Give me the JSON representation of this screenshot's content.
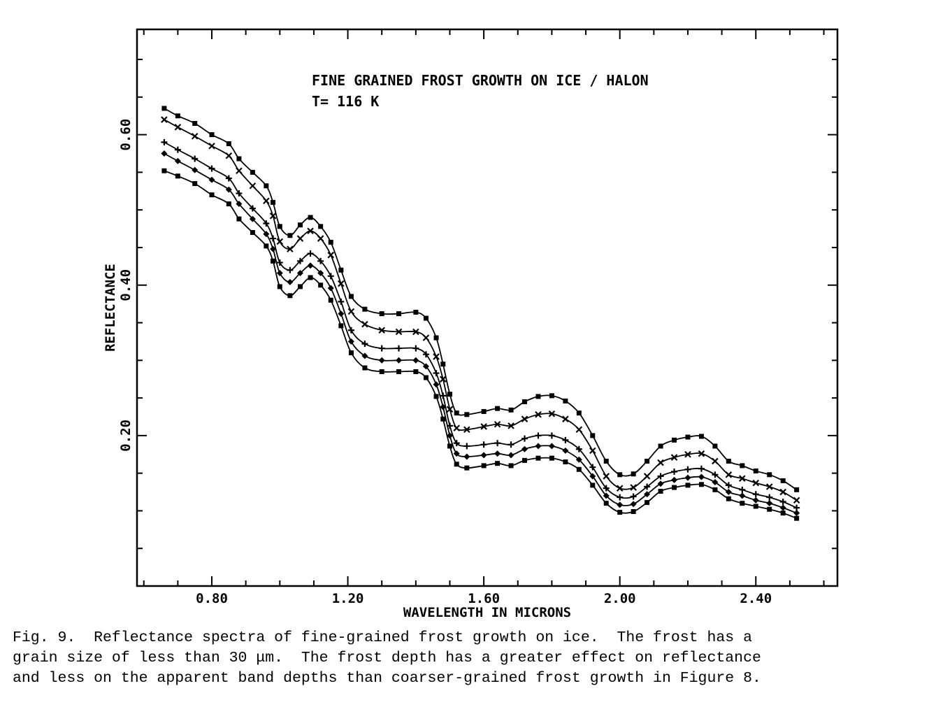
{
  "chart_data": {
    "type": "line",
    "title": "FINE GRAINED FROST GROWTH ON ICE / HALON",
    "subtitle": "T= 116 K",
    "xlabel": "WAVELENGTH IN MICRONS",
    "ylabel": "REFLECTANCE",
    "xlim": [
      0.58,
      2.64
    ],
    "ylim": [
      0.0,
      0.74
    ],
    "x_ticks": [
      "0.80",
      "1.20",
      "1.60",
      "2.00",
      "2.40"
    ],
    "y_ticks": [
      "0.20",
      "0.40",
      "0.60"
    ],
    "grid": false,
    "x": [
      0.66,
      0.7,
      0.75,
      0.8,
      0.85,
      0.88,
      0.92,
      0.96,
      0.98,
      1.0,
      1.03,
      1.06,
      1.09,
      1.12,
      1.15,
      1.18,
      1.21,
      1.25,
      1.3,
      1.35,
      1.4,
      1.43,
      1.46,
      1.48,
      1.5,
      1.52,
      1.55,
      1.6,
      1.64,
      1.68,
      1.72,
      1.76,
      1.8,
      1.84,
      1.88,
      1.92,
      1.96,
      2.0,
      2.04,
      2.08,
      2.12,
      2.16,
      2.2,
      2.24,
      2.28,
      2.32,
      2.36,
      2.4,
      2.44,
      2.48,
      2.52
    ],
    "series": [
      {
        "marker": "square",
        "values": [
          0.635,
          0.625,
          0.615,
          0.6,
          0.588,
          0.568,
          0.55,
          0.532,
          0.51,
          0.478,
          0.466,
          0.48,
          0.49,
          0.478,
          0.457,
          0.42,
          0.385,
          0.368,
          0.362,
          0.362,
          0.364,
          0.356,
          0.33,
          0.295,
          0.255,
          0.23,
          0.228,
          0.232,
          0.236,
          0.234,
          0.245,
          0.252,
          0.253,
          0.246,
          0.23,
          0.2,
          0.166,
          0.148,
          0.149,
          0.166,
          0.186,
          0.194,
          0.198,
          0.199,
          0.186,
          0.166,
          0.16,
          0.153,
          0.148,
          0.14,
          0.128
        ]
      },
      {
        "marker": "cross",
        "values": [
          0.62,
          0.61,
          0.598,
          0.585,
          0.572,
          0.552,
          0.532,
          0.512,
          0.492,
          0.458,
          0.448,
          0.462,
          0.472,
          0.462,
          0.44,
          0.402,
          0.365,
          0.348,
          0.34,
          0.338,
          0.338,
          0.33,
          0.305,
          0.275,
          0.235,
          0.21,
          0.208,
          0.212,
          0.215,
          0.213,
          0.222,
          0.228,
          0.229,
          0.222,
          0.208,
          0.18,
          0.146,
          0.13,
          0.131,
          0.146,
          0.164,
          0.171,
          0.175,
          0.176,
          0.166,
          0.148,
          0.143,
          0.137,
          0.132,
          0.125,
          0.114
        ]
      },
      {
        "marker": "plus",
        "values": [
          0.59,
          0.58,
          0.568,
          0.555,
          0.542,
          0.522,
          0.502,
          0.482,
          0.462,
          0.43,
          0.42,
          0.432,
          0.442,
          0.432,
          0.412,
          0.378,
          0.34,
          0.322,
          0.316,
          0.316,
          0.316,
          0.308,
          0.283,
          0.253,
          0.213,
          0.19,
          0.186,
          0.188,
          0.19,
          0.188,
          0.196,
          0.2,
          0.2,
          0.194,
          0.182,
          0.158,
          0.13,
          0.118,
          0.119,
          0.132,
          0.146,
          0.152,
          0.155,
          0.156,
          0.148,
          0.134,
          0.128,
          0.122,
          0.118,
          0.112,
          0.104
        ]
      },
      {
        "marker": "diamond",
        "values": [
          0.575,
          0.565,
          0.553,
          0.54,
          0.527,
          0.508,
          0.488,
          0.468,
          0.448,
          0.416,
          0.404,
          0.416,
          0.426,
          0.416,
          0.396,
          0.362,
          0.325,
          0.306,
          0.3,
          0.3,
          0.3,
          0.292,
          0.268,
          0.238,
          0.2,
          0.176,
          0.172,
          0.174,
          0.176,
          0.174,
          0.182,
          0.186,
          0.186,
          0.18,
          0.168,
          0.146,
          0.12,
          0.108,
          0.109,
          0.122,
          0.136,
          0.141,
          0.144,
          0.145,
          0.138,
          0.125,
          0.12,
          0.114,
          0.11,
          0.104,
          0.097
        ]
      },
      {
        "marker": "square",
        "values": [
          0.552,
          0.545,
          0.535,
          0.52,
          0.508,
          0.488,
          0.47,
          0.452,
          0.432,
          0.398,
          0.386,
          0.398,
          0.41,
          0.4,
          0.38,
          0.346,
          0.31,
          0.29,
          0.285,
          0.285,
          0.285,
          0.277,
          0.252,
          0.222,
          0.186,
          0.162,
          0.157,
          0.16,
          0.163,
          0.16,
          0.167,
          0.17,
          0.17,
          0.165,
          0.155,
          0.134,
          0.11,
          0.098,
          0.099,
          0.111,
          0.126,
          0.131,
          0.134,
          0.135,
          0.128,
          0.116,
          0.11,
          0.106,
          0.102,
          0.097,
          0.09
        ]
      }
    ]
  },
  "caption": {
    "text": "Fig. 9.  Reflectance spectra of fine-grained frost growth on ice.  The frost has a\ngrain size of less than 30 μm.  The frost depth has a greater effect on reflectance\nand less on the apparent band depths than coarser-grained frost growth in Figure 8."
  }
}
